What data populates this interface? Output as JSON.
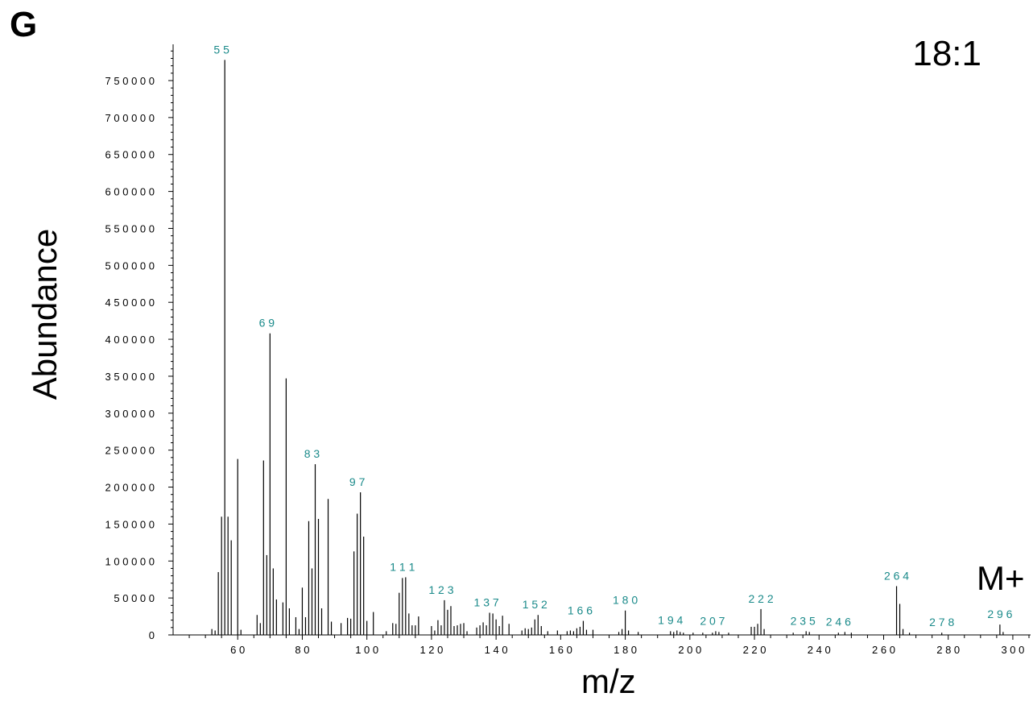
{
  "panel_label": "G",
  "ratio_label": "18:1",
  "molecular_ion_label": "M+",
  "chart_data": {
    "type": "bar",
    "title": "",
    "xlabel": "m/z",
    "ylabel": "Abundance",
    "xlim": [
      40,
      305
    ],
    "ylim": [
      0,
      790000
    ],
    "x_ticks": [
      60,
      80,
      100,
      120,
      140,
      160,
      180,
      200,
      220,
      240,
      260,
      280,
      300
    ],
    "y_ticks": [
      0,
      50000,
      100000,
      150000,
      200000,
      250000,
      300000,
      350000,
      400000,
      450000,
      500000,
      550000,
      600000,
      650000,
      700000,
      750000
    ],
    "x_tick_labels": [
      "6 0",
      "8 0",
      "1 0 0",
      "1 2 0",
      "1 4 0",
      "1 6 0",
      "1 8 0",
      "2 0 0",
      "2 2 0",
      "2 4 0",
      "2 6 0",
      "2 8 0",
      "3 0 0"
    ],
    "y_tick_labels": [
      "0",
      "5 0 0 0 0",
      "1 0 0 0 0 0",
      "1 5 0 0 0 0",
      "2 0 0 0 0 0",
      "2 5 0 0 0 0",
      "3 0 0 0 0 0",
      "3 5 0 0 0 0",
      "4 0 0 0 0 0",
      "4 5 0 0 0 0",
      "5 0 0 0 0 0",
      "5 5 0 0 0 0",
      "6 0 0 0 0 0",
      "6 5 0 0 0 0",
      "7 0 0 0 0 0",
      "7 5 0 0 0 0"
    ],
    "grid": false,
    "bar_color": "#000000",
    "label_color": "#1a8a8a",
    "peaks": [
      {
        "x": 52,
        "y": 8000
      },
      {
        "x": 53,
        "y": 6000
      },
      {
        "x": 54,
        "y": 85000
      },
      {
        "x": 55,
        "y": 160000
      },
      {
        "x": 56,
        "y": 778000
      },
      {
        "x": 57,
        "y": 160000
      },
      {
        "x": 58,
        "y": 128000
      },
      {
        "x": 60,
        "y": 238000
      },
      {
        "x": 61,
        "y": 7000
      },
      {
        "x": 66,
        "y": 27000
      },
      {
        "x": 67,
        "y": 16000
      },
      {
        "x": 68,
        "y": 236000
      },
      {
        "x": 69,
        "y": 108000
      },
      {
        "x": 70,
        "y": 408000
      },
      {
        "x": 71,
        "y": 90000
      },
      {
        "x": 72,
        "y": 48000
      },
      {
        "x": 74,
        "y": 44000
      },
      {
        "x": 75,
        "y": 347000
      },
      {
        "x": 76,
        "y": 36000
      },
      {
        "x": 78,
        "y": 24000
      },
      {
        "x": 79,
        "y": 8000
      },
      {
        "x": 80,
        "y": 64000
      },
      {
        "x": 81,
        "y": 24000
      },
      {
        "x": 82,
        "y": 154000
      },
      {
        "x": 83,
        "y": 90000
      },
      {
        "x": 84,
        "y": 231000
      },
      {
        "x": 85,
        "y": 157000
      },
      {
        "x": 86,
        "y": 36000
      },
      {
        "x": 88,
        "y": 184000
      },
      {
        "x": 89,
        "y": 18000
      },
      {
        "x": 92,
        "y": 16000
      },
      {
        "x": 94,
        "y": 23000
      },
      {
        "x": 95,
        "y": 22000
      },
      {
        "x": 96,
        "y": 113000
      },
      {
        "x": 97,
        "y": 164000
      },
      {
        "x": 98,
        "y": 193000
      },
      {
        "x": 99,
        "y": 133000
      },
      {
        "x": 100,
        "y": 19000
      },
      {
        "x": 102,
        "y": 31000
      },
      {
        "x": 106,
        "y": 5000
      },
      {
        "x": 108,
        "y": 16000
      },
      {
        "x": 109,
        "y": 15000
      },
      {
        "x": 110,
        "y": 57000
      },
      {
        "x": 111,
        "y": 77000
      },
      {
        "x": 112,
        "y": 78000
      },
      {
        "x": 113,
        "y": 29000
      },
      {
        "x": 114,
        "y": 13000
      },
      {
        "x": 115,
        "y": 13000
      },
      {
        "x": 116,
        "y": 25000
      },
      {
        "x": 120,
        "y": 12000
      },
      {
        "x": 121,
        "y": 6000
      },
      {
        "x": 122,
        "y": 20000
      },
      {
        "x": 123,
        "y": 13000
      },
      {
        "x": 124,
        "y": 47000
      },
      {
        "x": 125,
        "y": 34000
      },
      {
        "x": 126,
        "y": 39000
      },
      {
        "x": 127,
        "y": 12000
      },
      {
        "x": 128,
        "y": 13000
      },
      {
        "x": 129,
        "y": 15000
      },
      {
        "x": 130,
        "y": 16000
      },
      {
        "x": 131,
        "y": 5000
      },
      {
        "x": 134,
        "y": 10000
      },
      {
        "x": 135,
        "y": 13000
      },
      {
        "x": 136,
        "y": 17000
      },
      {
        "x": 137,
        "y": 13000
      },
      {
        "x": 138,
        "y": 30000
      },
      {
        "x": 139,
        "y": 29000
      },
      {
        "x": 140,
        "y": 21000
      },
      {
        "x": 141,
        "y": 12000
      },
      {
        "x": 142,
        "y": 26000
      },
      {
        "x": 144,
        "y": 15000
      },
      {
        "x": 148,
        "y": 6000
      },
      {
        "x": 149,
        "y": 9000
      },
      {
        "x": 150,
        "y": 8000
      },
      {
        "x": 151,
        "y": 10000
      },
      {
        "x": 152,
        "y": 21000
      },
      {
        "x": 153,
        "y": 27000
      },
      {
        "x": 154,
        "y": 12000
      },
      {
        "x": 156,
        "y": 5000
      },
      {
        "x": 159,
        "y": 6000
      },
      {
        "x": 162,
        "y": 5000
      },
      {
        "x": 163,
        "y": 6000
      },
      {
        "x": 164,
        "y": 5000
      },
      {
        "x": 165,
        "y": 9000
      },
      {
        "x": 166,
        "y": 11000
      },
      {
        "x": 167,
        "y": 19000
      },
      {
        "x": 168,
        "y": 7000
      },
      {
        "x": 170,
        "y": 7000
      },
      {
        "x": 178,
        "y": 4000
      },
      {
        "x": 179,
        "y": 8000
      },
      {
        "x": 180,
        "y": 33000
      },
      {
        "x": 181,
        "y": 6000
      },
      {
        "x": 184,
        "y": 4000
      },
      {
        "x": 194,
        "y": 5000
      },
      {
        "x": 195,
        "y": 4000
      },
      {
        "x": 196,
        "y": 6000
      },
      {
        "x": 197,
        "y": 4000
      },
      {
        "x": 198,
        "y": 3000
      },
      {
        "x": 201,
        "y": 3000
      },
      {
        "x": 204,
        "y": 3000
      },
      {
        "x": 207,
        "y": 3000
      },
      {
        "x": 208,
        "y": 5000
      },
      {
        "x": 209,
        "y": 4000
      },
      {
        "x": 212,
        "y": 3000
      },
      {
        "x": 219,
        "y": 11000
      },
      {
        "x": 220,
        "y": 11000
      },
      {
        "x": 221,
        "y": 15000
      },
      {
        "x": 222,
        "y": 35000
      },
      {
        "x": 223,
        "y": 8000
      },
      {
        "x": 232,
        "y": 3000
      },
      {
        "x": 236,
        "y": 5000
      },
      {
        "x": 237,
        "y": 4000
      },
      {
        "x": 246,
        "y": 3000
      },
      {
        "x": 248,
        "y": 4000
      },
      {
        "x": 250,
        "y": 3000
      },
      {
        "x": 264,
        "y": 66000
      },
      {
        "x": 265,
        "y": 42000
      },
      {
        "x": 266,
        "y": 8000
      },
      {
        "x": 268,
        "y": 3000
      },
      {
        "x": 278,
        "y": 3000
      },
      {
        "x": 296,
        "y": 14000
      },
      {
        "x": 297,
        "y": 4000
      }
    ],
    "peak_labels": [
      {
        "text": "5 5",
        "x": 55,
        "y": 778000
      },
      {
        "text": "6 9",
        "x": 69,
        "y": 408000
      },
      {
        "text": "8 3",
        "x": 83,
        "y": 231000
      },
      {
        "text": "9 7",
        "x": 97,
        "y": 193000
      },
      {
        "text": "1 1 1",
        "x": 111,
        "y": 78000
      },
      {
        "text": "1 2 3",
        "x": 123,
        "y": 47000
      },
      {
        "text": "1 3 7",
        "x": 137,
        "y": 30000
      },
      {
        "text": "1 5 2",
        "x": 152,
        "y": 27000
      },
      {
        "text": "1 6 6",
        "x": 166,
        "y": 19000
      },
      {
        "text": "1 8 0",
        "x": 180,
        "y": 33000
      },
      {
        "text": "1 9 4",
        "x": 194,
        "y": 6000
      },
      {
        "text": "2 0 7",
        "x": 207,
        "y": 5000
      },
      {
        "text": "2 2 2",
        "x": 222,
        "y": 35000
      },
      {
        "text": "2 3 5",
        "x": 235,
        "y": 5000
      },
      {
        "text": "2 4 6",
        "x": 246,
        "y": 4000
      },
      {
        "text": "2 6 4",
        "x": 264,
        "y": 66000
      },
      {
        "text": "2 7 8",
        "x": 278,
        "y": 3000
      },
      {
        "text": "2 9 6",
        "x": 296,
        "y": 14000
      }
    ]
  }
}
